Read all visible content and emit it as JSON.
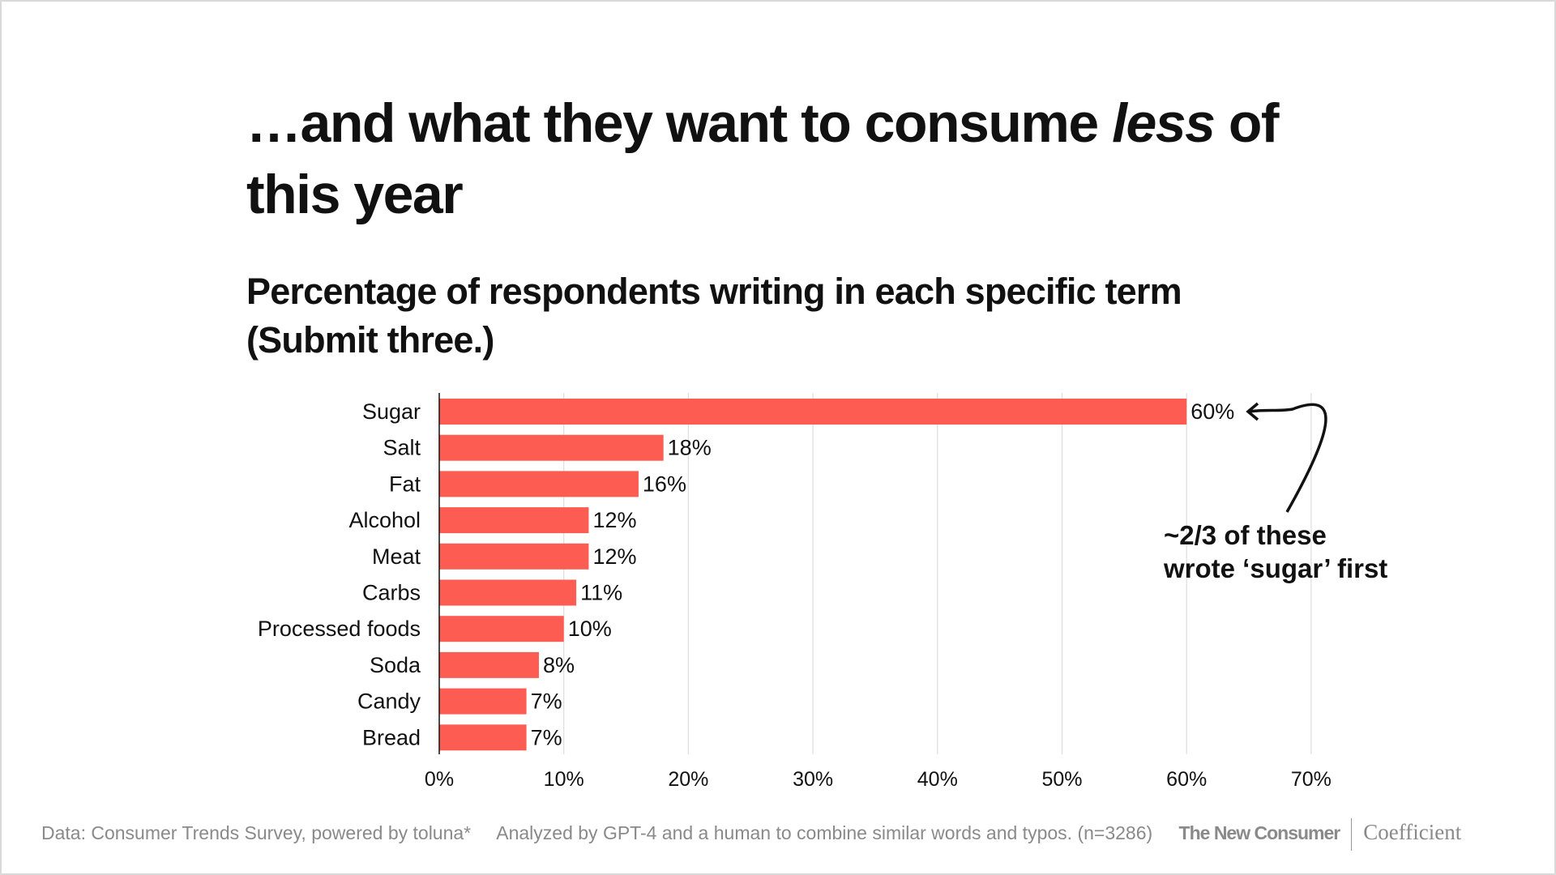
{
  "title_main": "…and what they want to consume ",
  "title_italic": "less",
  "title_end": " of this year",
  "subtitle": "Percentage of respondents writing in each specific term (Submit three.)",
  "annotation": [
    "~2/3 of these",
    "wrote ‘sugar’ first"
  ],
  "footer": {
    "source": "Data: Consumer Trends Survey, powered by toluna*",
    "method": "Analyzed by GPT-4 and a human to combine similar words and typos. (n=3286)",
    "brand1": "The New Consumer",
    "brand2": "Coefficient"
  },
  "colors": {
    "bar": "#fd5c52",
    "grid": "#dddddd"
  },
  "chart_data": {
    "type": "bar",
    "orientation": "horizontal",
    "categories": [
      "Sugar",
      "Salt",
      "Fat",
      "Alcohol",
      "Meat",
      "Carbs",
      "Processed foods",
      "Soda",
      "Candy",
      "Bread"
    ],
    "values": [
      60,
      18,
      16,
      12,
      12,
      11,
      10,
      8,
      7,
      7
    ],
    "data_labels": [
      "60%",
      "18%",
      "16%",
      "12%",
      "12%",
      "11%",
      "10%",
      "8%",
      "7%",
      "7%"
    ],
    "xlim": [
      0,
      70
    ],
    "xticks": [
      "0%",
      "10%",
      "20%",
      "30%",
      "40%",
      "50%",
      "60%",
      "70%"
    ],
    "grid": true
  }
}
